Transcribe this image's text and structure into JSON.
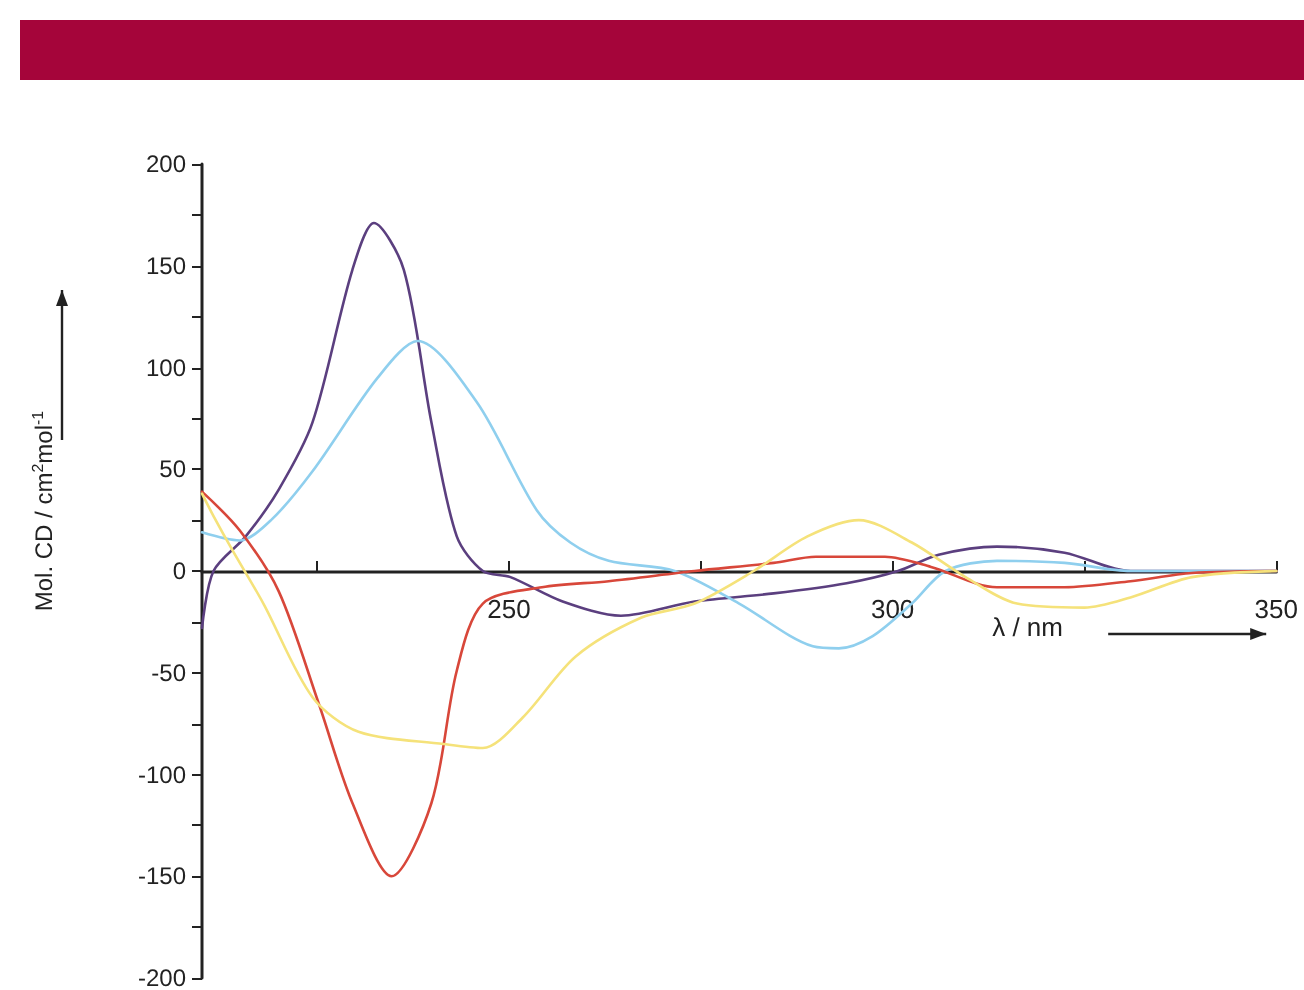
{
  "chart_data": {
    "type": "line",
    "xlabel": "λ / nm",
    "ylabel": "Mol. CD / cm$^{2}$mol$^{-1}$",
    "xlim": [
      210,
      350
    ],
    "xticks": [
      {
        "value": 225,
        "label": null
      },
      250,
      {
        "value": 275,
        "label": null
      },
      300,
      {
        "value": 325,
        "label": null
      },
      350
    ],
    "ylim": [
      -200,
      200
    ],
    "yticks": [
      -200,
      {
        "value": -175,
        "label": null
      },
      -150,
      {
        "value": -125,
        "label": null
      },
      -100,
      {
        "value": -75,
        "label": null
      },
      -50,
      {
        "value": -25,
        "label": null
      },
      0,
      {
        "value": 25,
        "label": null
      },
      50,
      {
        "value": 75,
        "label": null
      },
      100,
      {
        "value": 125,
        "label": null
      },
      150,
      {
        "value": 175,
        "label": null
      },
      200
    ],
    "grid": false,
    "marker": "none",
    "line_style": "solid",
    "series": [
      {
        "color": "#5b3f7f",
        "x": [
          210,
          211.5,
          215.7,
          220,
          224.4,
          229.6,
          232.4,
          236.3,
          239.9,
          243.2,
          246.6,
          250.2,
          257,
          264.6,
          274.2,
          284.5,
          294,
          300.7,
          306,
          313.6,
          322.4,
          331,
          340,
          350
        ],
        "values": [
          -28,
          0,
          17,
          40,
          73,
          148,
          171,
          148,
          73,
          17,
          0,
          -3,
          -15,
          -22,
          -15,
          -11,
          -6,
          0,
          8,
          12,
          9,
          0,
          0,
          0
        ]
      },
      {
        "color": "#8fcfee",
        "x": [
          210,
          214.9,
          219,
          224.4,
          232.9,
          238.1,
          245.8,
          253.6,
          258,
          263,
          271.6,
          280,
          289.6,
          293,
          297.4,
          302.5,
          306.9,
          313.6,
          322.4,
          331,
          340,
          350
        ],
        "values": [
          19,
          15,
          25,
          49,
          95,
          113,
          83,
          30,
          14,
          5,
          0,
          -16,
          -37,
          -38,
          -32,
          -16,
          0,
          5,
          4,
          0,
          0,
          0
        ]
      },
      {
        "color": "#d8473a",
        "x": [
          210,
          214.9,
          220,
          225.2,
          229.6,
          234.7,
          239.9,
          243.2,
          246.6,
          254.3,
          263,
          274.2,
          284.5,
          290,
          299,
          305,
          313.6,
          322.4,
          331,
          339,
          350
        ],
        "values": [
          39,
          20,
          -10,
          -65,
          -114,
          -150,
          -114,
          -49,
          -16,
          -8,
          -5,
          0,
          4,
          7,
          7,
          2,
          -8,
          -8,
          -5,
          -1,
          0
        ]
      },
      {
        "color": "#f5e27a",
        "x": [
          210,
          211.5,
          214,
          218,
          224.4,
          230.4,
          241.5,
          246.6,
          251.8,
          258.7,
          267.2,
          274.2,
          281.9,
          288.9,
          295.6,
          302.5,
          309.5,
          316.2,
          325,
          331,
          339,
          350
        ],
        "values": [
          38,
          27,
          10,
          -16,
          -62,
          -79,
          -85,
          -87,
          -72,
          -42,
          -23,
          -16,
          0,
          17,
          25,
          14,
          -3,
          -16,
          -18,
          -13,
          -3,
          0
        ]
      }
    ]
  }
}
